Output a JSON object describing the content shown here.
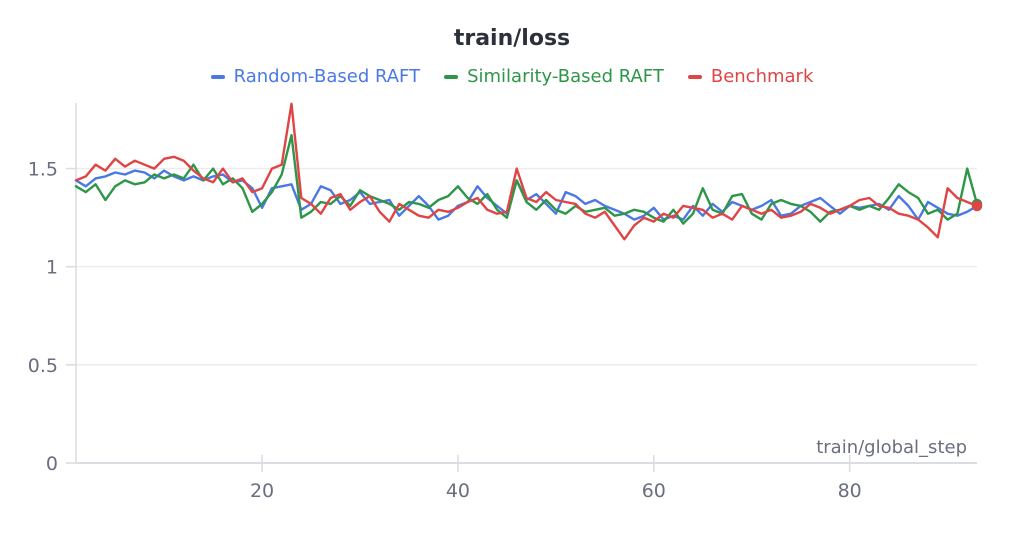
{
  "header": {
    "title": "train/loss"
  },
  "colors": {
    "background": "#ffffff",
    "title_text": "#2b303a",
    "tick_text": "#6a6e80",
    "axis_label_text": "#6a6e80",
    "grid_line": "#ececef",
    "axis_line": "#dcdde2"
  },
  "chart_data": {
    "type": "line",
    "title": "train/loss",
    "xlabel": "train/global_step",
    "ylabel": "",
    "legend_position": "top-center",
    "grid": "horizontal",
    "x_axis_ticks": [
      20,
      40,
      60,
      80
    ],
    "y_axis_ticks": [
      0,
      0.5,
      1,
      1.5
    ],
    "xlim": [
      1,
      93
    ],
    "ylim": [
      0,
      1.85
    ],
    "x": [
      1,
      2,
      3,
      4,
      5,
      6,
      7,
      8,
      9,
      10,
      11,
      12,
      13,
      14,
      15,
      16,
      17,
      18,
      19,
      20,
      21,
      22,
      23,
      24,
      25,
      26,
      27,
      28,
      29,
      30,
      31,
      32,
      33,
      34,
      35,
      36,
      37,
      38,
      39,
      40,
      41,
      42,
      43,
      44,
      45,
      46,
      47,
      48,
      49,
      50,
      51,
      52,
      53,
      54,
      55,
      56,
      57,
      58,
      59,
      60,
      61,
      62,
      63,
      64,
      65,
      66,
      67,
      68,
      69,
      70,
      71,
      72,
      73,
      74,
      75,
      76,
      77,
      78,
      79,
      80,
      81,
      82,
      83,
      84,
      85,
      86,
      87,
      88,
      89,
      90,
      91,
      92,
      93
    ],
    "series": [
      {
        "name": "Random-Based RAFT",
        "color": "#4b79e4",
        "values": [
          1.44,
          1.41,
          1.45,
          1.46,
          1.48,
          1.47,
          1.49,
          1.48,
          1.45,
          1.49,
          1.46,
          1.44,
          1.46,
          1.44,
          1.46,
          1.47,
          1.43,
          1.44,
          1.4,
          1.3,
          1.4,
          1.41,
          1.42,
          1.29,
          1.32,
          1.41,
          1.39,
          1.32,
          1.34,
          1.38,
          1.32,
          1.33,
          1.34,
          1.26,
          1.31,
          1.36,
          1.31,
          1.24,
          1.26,
          1.31,
          1.33,
          1.41,
          1.35,
          1.31,
          1.27,
          1.44,
          1.34,
          1.37,
          1.32,
          1.27,
          1.38,
          1.36,
          1.32,
          1.34,
          1.31,
          1.29,
          1.27,
          1.24,
          1.26,
          1.3,
          1.24,
          1.26,
          1.24,
          1.31,
          1.26,
          1.32,
          1.28,
          1.33,
          1.31,
          1.29,
          1.31,
          1.34,
          1.26,
          1.27,
          1.31,
          1.33,
          1.35,
          1.31,
          1.27,
          1.31,
          1.3,
          1.31,
          1.32,
          1.29,
          1.36,
          1.31,
          1.24,
          1.33,
          1.3,
          1.27,
          1.26,
          1.28,
          1.31
        ]
      },
      {
        "name": "Similarity-Based RAFT",
        "color": "#2e9648",
        "values": [
          1.41,
          1.38,
          1.42,
          1.34,
          1.41,
          1.44,
          1.42,
          1.43,
          1.47,
          1.45,
          1.47,
          1.45,
          1.52,
          1.44,
          1.5,
          1.42,
          1.45,
          1.4,
          1.28,
          1.32,
          1.38,
          1.47,
          1.67,
          1.25,
          1.28,
          1.33,
          1.32,
          1.36,
          1.31,
          1.39,
          1.36,
          1.34,
          1.32,
          1.29,
          1.33,
          1.32,
          1.3,
          1.34,
          1.36,
          1.41,
          1.35,
          1.32,
          1.37,
          1.29,
          1.25,
          1.44,
          1.33,
          1.29,
          1.34,
          1.29,
          1.27,
          1.31,
          1.28,
          1.29,
          1.3,
          1.26,
          1.27,
          1.29,
          1.28,
          1.25,
          1.23,
          1.29,
          1.22,
          1.27,
          1.4,
          1.29,
          1.27,
          1.36,
          1.37,
          1.27,
          1.24,
          1.32,
          1.34,
          1.32,
          1.31,
          1.28,
          1.23,
          1.28,
          1.29,
          1.31,
          1.29,
          1.31,
          1.29,
          1.35,
          1.42,
          1.38,
          1.35,
          1.27,
          1.29,
          1.24,
          1.27,
          1.5,
          1.32
        ]
      },
      {
        "name": "Benchmark",
        "color": "#e04545",
        "values": [
          1.44,
          1.46,
          1.52,
          1.49,
          1.55,
          1.51,
          1.54,
          1.52,
          1.5,
          1.55,
          1.56,
          1.54,
          1.49,
          1.45,
          1.43,
          1.5,
          1.43,
          1.45,
          1.38,
          1.4,
          1.5,
          1.52,
          1.83,
          1.35,
          1.32,
          1.27,
          1.35,
          1.37,
          1.29,
          1.33,
          1.36,
          1.28,
          1.23,
          1.32,
          1.29,
          1.26,
          1.25,
          1.29,
          1.28,
          1.3,
          1.33,
          1.35,
          1.29,
          1.27,
          1.28,
          1.5,
          1.35,
          1.33,
          1.38,
          1.34,
          1.33,
          1.32,
          1.27,
          1.25,
          1.28,
          1.21,
          1.14,
          1.21,
          1.25,
          1.23,
          1.27,
          1.25,
          1.31,
          1.3,
          1.29,
          1.25,
          1.27,
          1.24,
          1.31,
          1.29,
          1.27,
          1.29,
          1.25,
          1.26,
          1.28,
          1.32,
          1.3,
          1.27,
          1.29,
          1.31,
          1.34,
          1.35,
          1.31,
          1.3,
          1.27,
          1.26,
          1.24,
          1.2,
          1.15,
          1.4,
          1.35,
          1.33,
          1.31
        ]
      }
    ]
  }
}
